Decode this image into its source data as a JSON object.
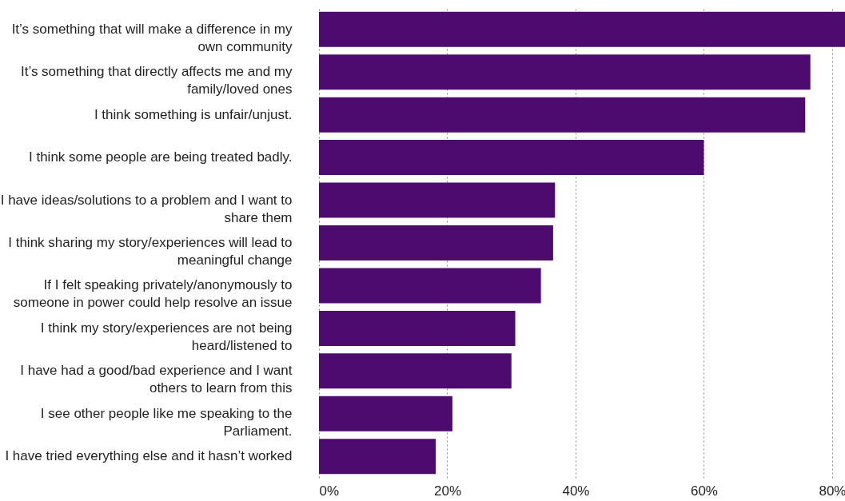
{
  "chart_data": {
    "type": "bar",
    "orientation": "horizontal",
    "categories": [
      "It’s something that will make a difference in my own community",
      "It’s something that directly affects me and my family/loved ones",
      "I think something is unfair/unjust.",
      "I think some people are being treated badly.",
      "I have ideas/solutions to a problem and I want to share them",
      "I think sharing my story/experiences will lead to meaningful change",
      "If I felt speaking privately/anonymously to someone in power could help resolve an issue",
      "I think my story/experiences are not being heard/listened to",
      "I have had a good/bad experience and I want others to learn from this",
      "I see other people like me speaking to the Parliament.",
      "I have tried everything else and it hasn’t worked"
    ],
    "values": [
      82,
      76.6,
      75.8,
      60,
      36.8,
      36.5,
      34.6,
      30.6,
      30,
      20.8,
      18.2
    ],
    "color": "#4d0a6f",
    "xlim": [
      0,
      82
    ],
    "xticks": [
      {
        "value": 0,
        "label": "0%"
      },
      {
        "value": 20,
        "label": "20%"
      },
      {
        "value": 40,
        "label": "40%"
      },
      {
        "value": 60,
        "label": "60%"
      },
      {
        "value": 80,
        "label": "80%"
      }
    ],
    "grid": "x"
  }
}
